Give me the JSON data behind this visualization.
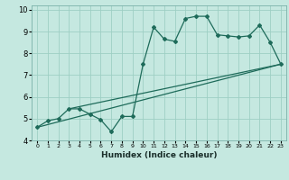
{
  "xlabel": "Humidex (Indice chaleur)",
  "xlim": [
    -0.5,
    23.5
  ],
  "ylim": [
    4,
    10.2
  ],
  "xticks": [
    0,
    1,
    2,
    3,
    4,
    5,
    6,
    7,
    8,
    9,
    10,
    11,
    12,
    13,
    14,
    15,
    16,
    17,
    18,
    19,
    20,
    21,
    22,
    23
  ],
  "yticks": [
    4,
    5,
    6,
    7,
    8,
    9,
    10
  ],
  "bg_color": "#c5e8e0",
  "grid_color": "#9ecfc4",
  "line_color": "#1e6b5a",
  "data_x": [
    0,
    1,
    2,
    3,
    4,
    5,
    6,
    7,
    8,
    9,
    10,
    11,
    12,
    13,
    14,
    15,
    16,
    17,
    18,
    19,
    20,
    21,
    22,
    23
  ],
  "data_y": [
    4.6,
    4.9,
    5.0,
    5.45,
    5.45,
    5.2,
    4.95,
    4.4,
    5.1,
    5.1,
    7.5,
    9.2,
    8.65,
    8.55,
    9.6,
    9.7,
    9.7,
    8.85,
    8.8,
    8.75,
    8.8,
    9.3,
    8.5,
    7.5
  ],
  "trend1_x": [
    0,
    23
  ],
  "trend1_y": [
    4.6,
    7.5
  ],
  "trend2_x": [
    3,
    23
  ],
  "trend2_y": [
    5.45,
    7.5
  ]
}
